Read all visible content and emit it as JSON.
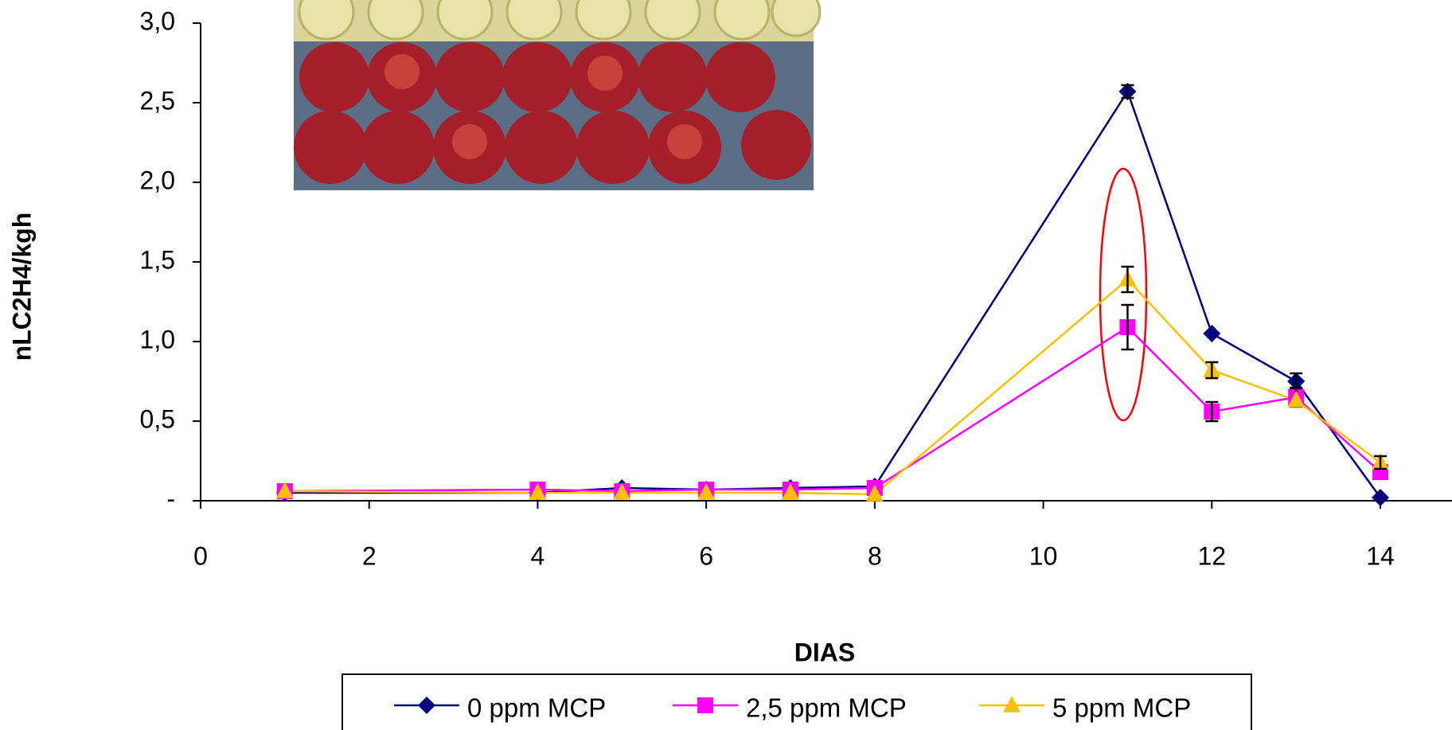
{
  "chart_data": {
    "type": "line",
    "y_label": "nLC2H4/kgh",
    "x_label": "DIAS",
    "xlim": [
      0,
      14.85
    ],
    "xticks": [
      0,
      2,
      4,
      6,
      8,
      10,
      12,
      14
    ],
    "ylim": [
      0,
      3.0
    ],
    "yticks": [
      {
        "value": 0,
        "label": "-"
      },
      {
        "value": 0.5,
        "label": "0,5"
      },
      {
        "value": 1.0,
        "label": "1,0"
      },
      {
        "value": 1.5,
        "label": "1,5"
      },
      {
        "value": 2.0,
        "label": "2,0"
      },
      {
        "value": 2.5,
        "label": "2,5"
      },
      {
        "value": 3.0,
        "label": "3,0"
      }
    ],
    "legend": "lower center",
    "x": [
      1,
      4,
      5,
      6,
      7,
      8,
      11,
      12,
      13,
      14
    ],
    "series": [
      {
        "name": "0 ppm MCP",
        "color": "#000080",
        "marker": "diamond",
        "values": [
          0.05,
          0.05,
          0.08,
          0.07,
          0.08,
          0.09,
          2.57,
          1.05,
          0.75,
          0.02
        ],
        "errors": [
          null,
          null,
          null,
          null,
          null,
          null,
          0.04,
          null,
          0.05,
          null
        ]
      },
      {
        "name": "2,5 ppm MCP",
        "color": "#ff00ff",
        "marker": "square",
        "values": [
          0.06,
          0.07,
          0.06,
          0.07,
          0.07,
          0.08,
          1.09,
          0.56,
          0.65,
          0.18
        ],
        "errors": [
          null,
          null,
          null,
          null,
          null,
          null,
          0.14,
          0.06,
          0.06,
          null
        ]
      },
      {
        "name": "5 ppm MCP",
        "color": "#ffc000",
        "marker": "triangle",
        "values": [
          0.06,
          0.05,
          0.05,
          0.05,
          0.05,
          0.04,
          1.39,
          0.82,
          0.63,
          0.24
        ],
        "errors": [
          null,
          null,
          null,
          null,
          null,
          null,
          0.08,
          0.05,
          null,
          0.04
        ]
      }
    ]
  }
}
